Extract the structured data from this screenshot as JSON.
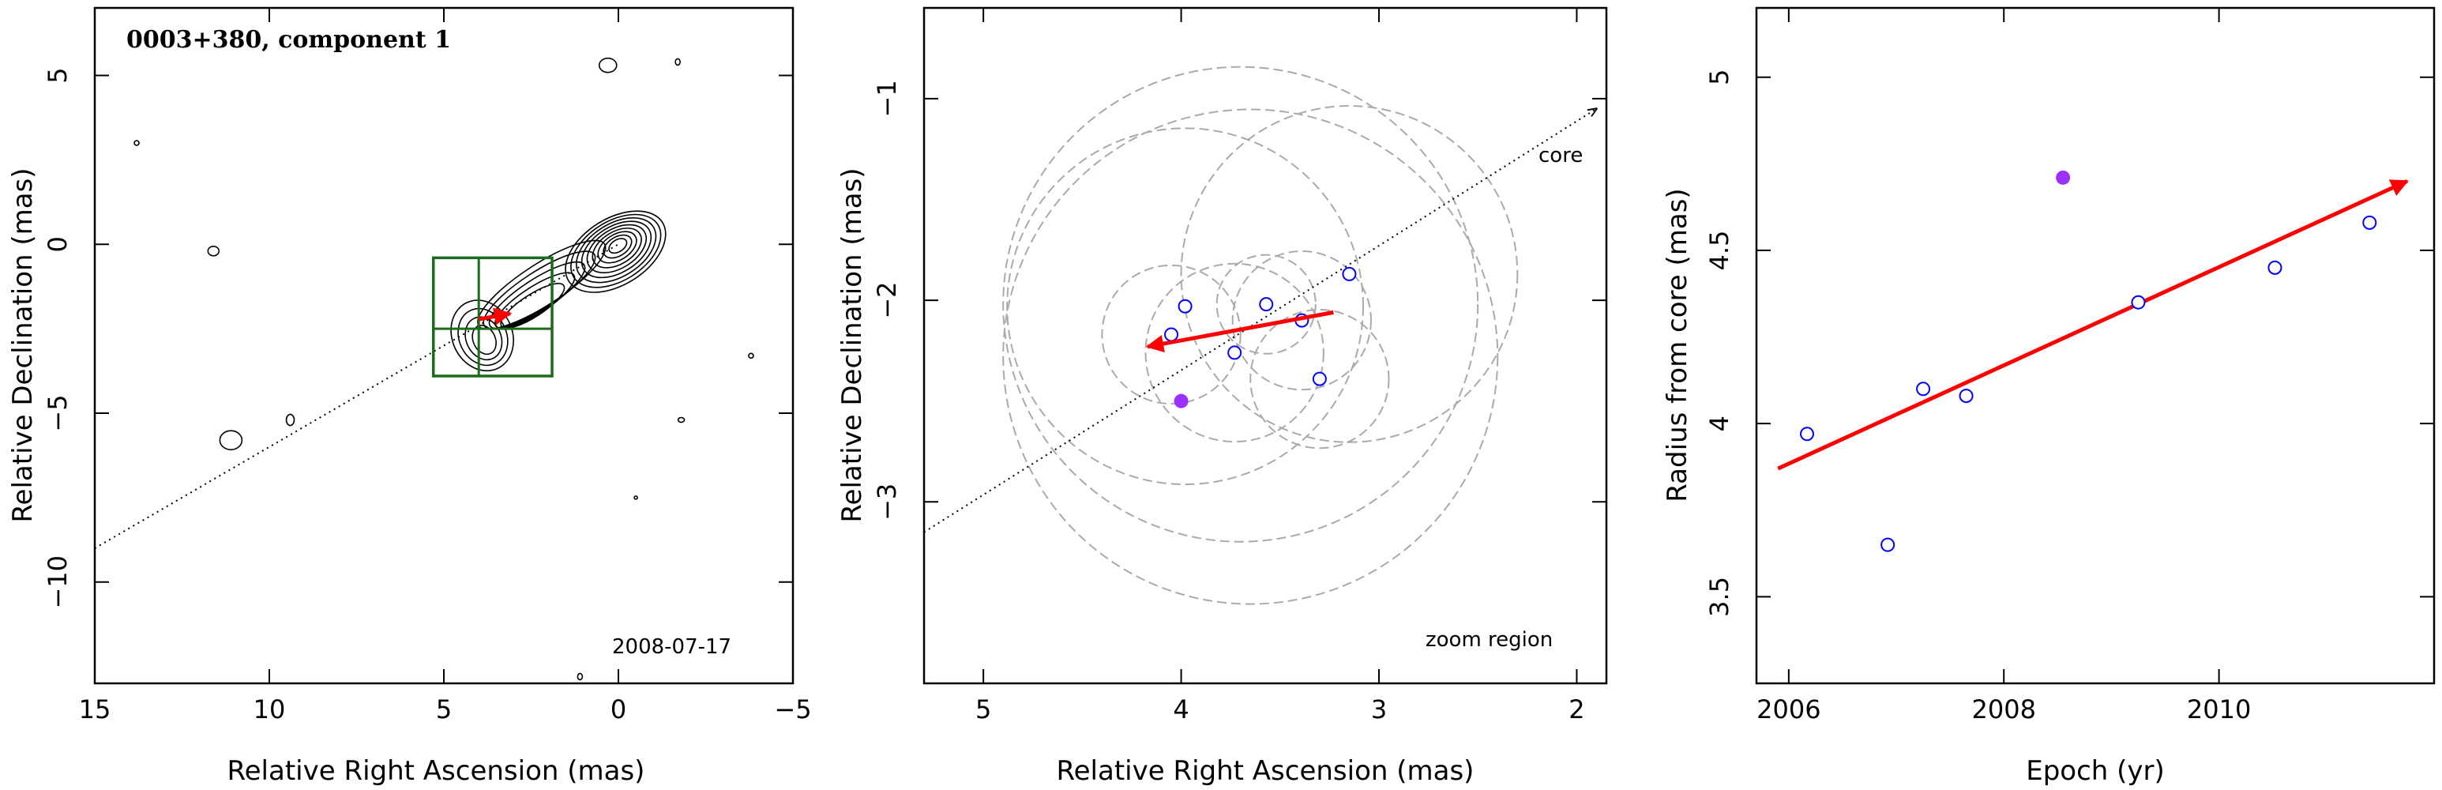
{
  "chart_data": [
    {
      "type": "contour",
      "title": "0003+380, component 1",
      "annotation": "2008-07-17",
      "xlabel": "Relative Right Ascension (mas)",
      "ylabel": "Relative Declination (mas)",
      "xlim": [
        15,
        -5
      ],
      "ylim": [
        -13,
        7
      ],
      "xticks": [
        15,
        10,
        5,
        0,
        -5
      ],
      "yticks": [
        5,
        0,
        -5,
        -10
      ],
      "zoom_box": {
        "ra": [
          5.3,
          1.9
        ],
        "dec": [
          -3.9,
          -0.4
        ],
        "grid_ra": 4.0,
        "grid_dec": -2.5
      },
      "jet_axis": {
        "from": [
          15,
          -9
        ],
        "to": [
          0,
          0
        ]
      },
      "motion_vector": {
        "from": [
          4.0,
          -2.22
        ],
        "to": [
          3.1,
          -2.05
        ]
      },
      "core_peak": [
        0,
        0
      ],
      "colors": {
        "contour": "#000000",
        "box": "#1a6b1a",
        "vector": "#ff0000",
        "axis": "#000000"
      }
    },
    {
      "type": "scatter",
      "xlabel": "Relative Right Ascension (mas)",
      "ylabel": "Relative Declination (mas)",
      "xlim": [
        5.3,
        1.85
      ],
      "ylim": [
        -3.9,
        -0.55
      ],
      "xticks": [
        5,
        4,
        3,
        2
      ],
      "yticks": [
        -1,
        -2,
        -3
      ],
      "labels": {
        "core": "core",
        "zoom": "zoom region"
      },
      "open_points": [
        {
          "x": 4.05,
          "y": -2.17
        },
        {
          "x": 3.98,
          "y": -2.03
        },
        {
          "x": 3.73,
          "y": -2.26
        },
        {
          "x": 3.57,
          "y": -2.02
        },
        {
          "x": 3.39,
          "y": -2.1
        },
        {
          "x": 3.3,
          "y": -2.39
        },
        {
          "x": 3.15,
          "y": -1.87
        }
      ],
      "filled_points": [
        {
          "x": 4.0,
          "y": -2.5
        }
      ],
      "circles": [
        {
          "x": 3.73,
          "y": -2.26,
          "r": 0.45
        },
        {
          "x": 3.57,
          "y": -2.02,
          "r": 0.25
        },
        {
          "x": 3.39,
          "y": -2.1,
          "r": 0.35
        },
        {
          "x": 3.3,
          "y": -2.39,
          "r": 0.35
        },
        {
          "x": 4.05,
          "y": -2.17,
          "r": 0.35
        },
        {
          "x": 3.98,
          "y": -2.03,
          "r": 0.9
        },
        {
          "x": 3.15,
          "y": -1.87,
          "r": 0.85
        },
        {
          "x": 3.65,
          "y": -2.28,
          "r": 1.25
        },
        {
          "x": 3.7,
          "y": -2.02,
          "r": 1.2
        }
      ],
      "jet_axis": {
        "from": [
          5.3,
          -3.15
        ],
        "to": [
          1.9,
          -1.05
        ]
      },
      "motion_vector": {
        "from": [
          3.23,
          -2.06
        ],
        "to": [
          4.17,
          -2.23
        ]
      },
      "colors": {
        "open": "#0000ff",
        "filled": "#9b30ff",
        "circle": "#aaaaaa",
        "vector": "#ff0000"
      }
    },
    {
      "type": "scatter",
      "xlabel": "Epoch (yr)",
      "ylabel": "Radius from core (mas)",
      "xlim": [
        2005.7,
        2012.0
      ],
      "ylim": [
        3.25,
        5.2
      ],
      "xticks": [
        2006,
        2008,
        2010
      ],
      "yticks": [
        3.5,
        4,
        4.5,
        5
      ],
      "open_points": [
        {
          "x": 2006.17,
          "y": 3.97
        },
        {
          "x": 2006.92,
          "y": 3.65
        },
        {
          "x": 2007.25,
          "y": 4.1
        },
        {
          "x": 2007.65,
          "y": 4.08
        },
        {
          "x": 2009.25,
          "y": 4.35
        },
        {
          "x": 2010.52,
          "y": 4.45
        },
        {
          "x": 2011.4,
          "y": 4.58
        }
      ],
      "filled_points": [
        {
          "x": 2008.55,
          "y": 4.71
        }
      ],
      "fit_vector": {
        "from": [
          2005.9,
          3.87
        ],
        "to": [
          2011.75,
          4.7
        ]
      },
      "colors": {
        "open": "#0000ff",
        "filled": "#9b30ff",
        "vector": "#ff0000"
      }
    }
  ]
}
